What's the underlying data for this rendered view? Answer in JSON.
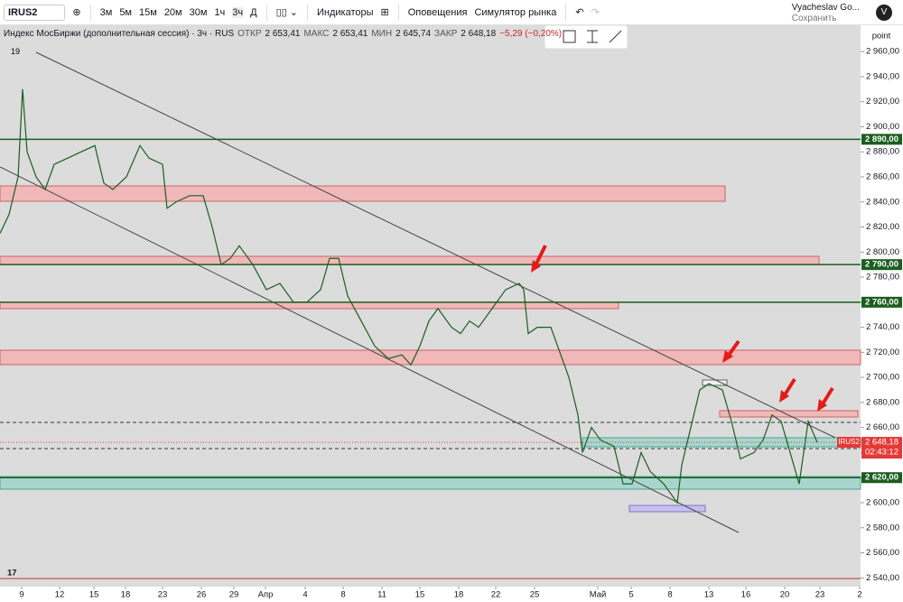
{
  "toolbar": {
    "symbol": "IRUS2",
    "intervals": [
      "3м",
      "5м",
      "15м",
      "20м",
      "30м",
      "1ч",
      "3ч",
      "Д"
    ],
    "indicators": "Индикаторы",
    "alerts": "Оповещения",
    "simulator": "Симулятор рынка",
    "user": "Vyacheslav Go...",
    "save": "Сохранить",
    "avatar": "V"
  },
  "legend": {
    "title": "Индекс МосБиржи (дополнительная сессия) · 3ч · RUS",
    "open_label": "ОТКР",
    "open": "2 653,41",
    "high_label": "МАКС",
    "high": "2 653,41",
    "low_label": "МИН",
    "low": "2 645,74",
    "close_label": "ЗАКР",
    "close": "2 648,18",
    "change": "−5,29 (−0,20%)",
    "count": "19"
  },
  "scale_label": "point",
  "chart_data": {
    "type": "line",
    "x": [
      0,
      2,
      4,
      5,
      6,
      8,
      10,
      12,
      15,
      18,
      21,
      23,
      25,
      28,
      31,
      33,
      36,
      37,
      39,
      42,
      45,
      47,
      49,
      51,
      53,
      56,
      59,
      62,
      65,
      68,
      71,
      73,
      75,
      77,
      80,
      83,
      86,
      89,
      91,
      93,
      95,
      97,
      100,
      102,
      104,
      106,
      109,
      112,
      115,
      116,
      117,
      119,
      122,
      124,
      126,
      128,
      129,
      131,
      133,
      136,
      138,
      140,
      142,
      144,
      147,
      150,
      151,
      153,
      155,
      157,
      160,
      162,
      164,
      167,
      169,
      171,
      173,
      175,
      177,
      179,
      181
    ],
    "series": [
      {
        "name": "IRUS2",
        "color": "#1b5e20",
        "values": [
          2815,
          2830,
          2860,
          2930,
          2880,
          2860,
          2850,
          2870,
          2875,
          2880,
          2885,
          2855,
          2850,
          2860,
          2885,
          2875,
          2870,
          2835,
          2840,
          2845,
          2845,
          2820,
          2790,
          2795,
          2805,
          2790,
          2770,
          2775,
          2760,
          2760,
          2770,
          2795,
          2795,
          2765,
          2745,
          2725,
          2715,
          2718,
          2710,
          2725,
          2745,
          2755,
          2740,
          2735,
          2745,
          2740,
          2755,
          2770,
          2775,
          2770,
          2735,
          2740,
          2740,
          2720,
          2700,
          2670,
          2640,
          2660,
          2650,
          2645,
          2615,
          2615,
          2640,
          2625,
          2615,
          2600,
          2630,
          2660,
          2690,
          2695,
          2690,
          2665,
          2635,
          2640,
          2650,
          2670,
          2665,
          2640,
          2615,
          2665,
          2648.18
        ]
      }
    ],
    "xlim": [
      0,
      190.6
    ],
    "xticks": [
      {
        "value": 4.8,
        "label": "9"
      },
      {
        "value": 13.2,
        "label": "12"
      },
      {
        "value": 20.8,
        "label": "15"
      },
      {
        "value": 27.8,
        "label": "18"
      },
      {
        "value": 36,
        "label": "23"
      },
      {
        "value": 44.6,
        "label": "26"
      },
      {
        "value": 51.8,
        "label": "29"
      },
      {
        "value": 58.8,
        "label": "Апр"
      },
      {
        "value": 67.6,
        "label": "4"
      },
      {
        "value": 76,
        "label": "8"
      },
      {
        "value": 84.6,
        "label": "11"
      },
      {
        "value": 93,
        "label": "15"
      },
      {
        "value": 101.6,
        "label": "18"
      },
      {
        "value": 109.8,
        "label": "22"
      },
      {
        "value": 118.4,
        "label": "25"
      },
      {
        "value": 132.4,
        "label": "Май"
      },
      {
        "value": 139.8,
        "label": "5"
      },
      {
        "value": 148.4,
        "label": "8"
      },
      {
        "value": 157,
        "label": "13"
      },
      {
        "value": 165.2,
        "label": "16"
      },
      {
        "value": 173.8,
        "label": "20"
      },
      {
        "value": 181.6,
        "label": "23"
      },
      {
        "value": 190.4,
        "label": "2"
      }
    ],
    "ylim": [
      2533,
      2981
    ],
    "yticks": [
      {
        "value": 2540,
        "label": "2 540,00"
      },
      {
        "value": 2560,
        "label": "2 560,00"
      },
      {
        "value": 2580,
        "label": "2 580,00"
      },
      {
        "value": 2600,
        "label": "2 600,00"
      },
      {
        "value": 2620,
        "label": "2 620,00"
      },
      {
        "value": 2640,
        "label": "2 640,00"
      },
      {
        "value": 2660,
        "label": "2 660,00"
      },
      {
        "value": 2680,
        "label": "2 680,00"
      },
      {
        "value": 2700,
        "label": "2 700,00"
      },
      {
        "value": 2720,
        "label": "2 720,00"
      },
      {
        "value": 2740,
        "label": "2 740,00"
      },
      {
        "value": 2760,
        "label": "2 760,00"
      },
      {
        "value": 2780,
        "label": "2 780,00"
      },
      {
        "value": 2800,
        "label": "2 800,00"
      },
      {
        "value": 2820,
        "label": "2 820,00"
      },
      {
        "value": 2840,
        "label": "2 840,00"
      },
      {
        "value": 2860,
        "label": "2 860,00"
      },
      {
        "value": 2880,
        "label": "2 880,00"
      },
      {
        "value": 2900,
        "label": "2 900,00"
      },
      {
        "value": 2920,
        "label": "2 920,00"
      },
      {
        "value": 2940,
        "label": "2 940,00"
      },
      {
        "value": 2960,
        "label": "2 960,00"
      }
    ],
    "levels": [
      {
        "value": 2890,
        "label": "2 890,00"
      },
      {
        "value": 2790,
        "label": "2 790,00"
      },
      {
        "value": 2760,
        "label": "2 760,00"
      },
      {
        "value": 2620,
        "label": "2 620,00"
      }
    ],
    "level_color": "#1b5e20",
    "last": {
      "value": 2648.18,
      "label": "2 648,18",
      "symbol": "IRUS2",
      "timer": "02:43:12",
      "color": "#e53935"
    },
    "background": "#dcdcdc"
  }
}
